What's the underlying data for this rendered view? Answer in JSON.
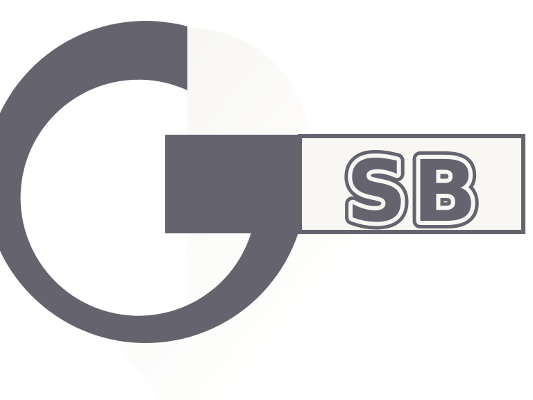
{
  "logo": {
    "text": "GSB",
    "badge_text": "SB"
  },
  "colors": {
    "background": "#ffffff",
    "shadow": "#f7f5f0",
    "mark": "#64636e",
    "letter_fill": "#f8f7f3"
  },
  "icons": [
    "gsb-logo-icon"
  ]
}
